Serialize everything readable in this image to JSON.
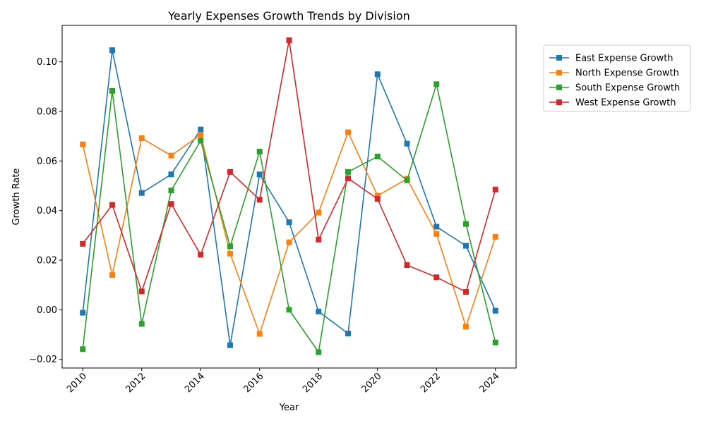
{
  "chart_data": {
    "type": "line",
    "title": "Yearly Expenses Growth Trends by Division",
    "xlabel": "Year",
    "ylabel": "Growth Rate",
    "x": [
      2010,
      2011,
      2012,
      2013,
      2014,
      2015,
      2016,
      2017,
      2018,
      2019,
      2020,
      2021,
      2022,
      2023,
      2024
    ],
    "xticks": [
      "2010",
      "2012",
      "2014",
      "2016",
      "2018",
      "2020",
      "2022",
      "2024"
    ],
    "yticks": [
      "−0.02",
      "0.00",
      "0.02",
      "0.04",
      "0.06",
      "0.08",
      "0.10"
    ],
    "xlim": [
      2009.3,
      2024.7
    ],
    "ylim": [
      -0.0235,
      0.1147
    ],
    "grid": false,
    "legend_position": "outside right, top",
    "marker": "square",
    "series": [
      {
        "name": "East Expense Growth",
        "color": "#1f77b4",
        "values": [
          -0.0012,
          0.1047,
          0.0471,
          0.0546,
          0.0727,
          -0.0143,
          0.0546,
          0.0353,
          -0.0007,
          -0.0096,
          0.095,
          0.067,
          0.0335,
          0.0258,
          -0.0004
        ]
      },
      {
        "name": "North Expense Growth",
        "color": "#ff7f0e",
        "values": [
          0.0667,
          0.014,
          0.0692,
          0.0622,
          0.0706,
          0.0226,
          -0.0097,
          0.0272,
          0.0392,
          0.0716,
          0.046,
          0.0528,
          0.0306,
          -0.0068,
          0.0294
        ]
      },
      {
        "name": "South Expense Growth",
        "color": "#2ca02c",
        "values": [
          -0.0159,
          0.0883,
          -0.0057,
          0.0481,
          0.0682,
          0.0256,
          0.0638,
          0.0,
          -0.0171,
          0.0556,
          0.0618,
          0.0522,
          0.091,
          0.0346,
          -0.0132
        ]
      },
      {
        "name": "West Expense Growth",
        "color": "#d62728",
        "values": [
          0.0266,
          0.0423,
          0.0074,
          0.0427,
          0.0222,
          0.0556,
          0.0444,
          0.1087,
          0.0283,
          0.053,
          0.0447,
          0.018,
          0.0131,
          0.0072,
          0.0485
        ]
      }
    ]
  }
}
